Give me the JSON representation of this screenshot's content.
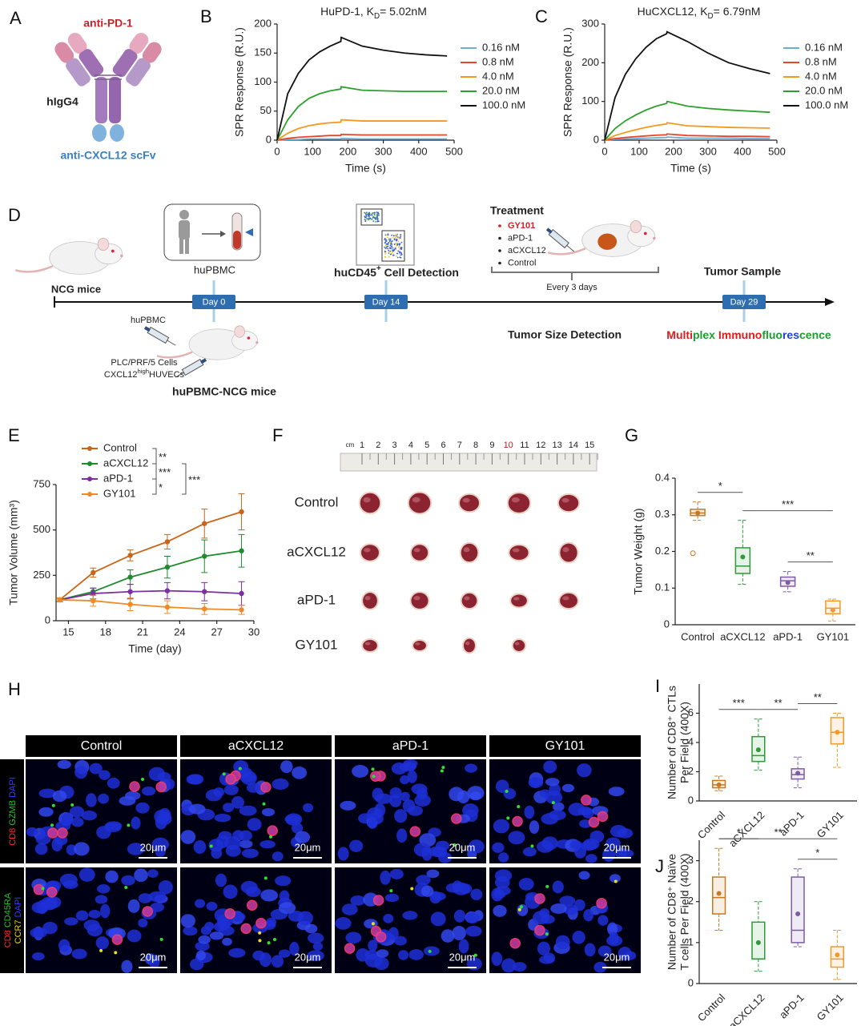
{
  "chart_data": [
    {
      "type": "line",
      "panel": "B",
      "title": {
        "text": "HuPD-1, K",
        "subscript": "D",
        "rest": "= 5.02nM"
      },
      "xlabel": "Time (s)",
      "ylabel": "SPR Response (R.U.)",
      "legend": "right",
      "xlim": [
        0,
        500
      ],
      "xticks": [
        0,
        100,
        200,
        300,
        400,
        500
      ],
      "ylim": [
        0,
        200
      ],
      "yticks": [
        0,
        50,
        100,
        150,
        200
      ],
      "x": [
        0,
        30,
        60,
        90,
        120,
        150,
        180,
        181,
        240,
        300,
        360,
        420,
        480
      ],
      "series": [
        {
          "name": "0.16 nM",
          "color": "#6baed6",
          "values": [
            0,
            1,
            1,
            2,
            2,
            2,
            2,
            3,
            2,
            2,
            2,
            2,
            2
          ]
        },
        {
          "name": "0.8 nM",
          "color": "#e8462a",
          "values": [
            0,
            3,
            5,
            6,
            7,
            8,
            8,
            10,
            9,
            9,
            9,
            9,
            9
          ]
        },
        {
          "name": "4.0 nM",
          "color": "#f39a1e",
          "values": [
            0,
            12,
            20,
            25,
            28,
            30,
            31,
            35,
            33,
            33,
            33,
            33,
            33
          ]
        },
        {
          "name": "20.0 nM",
          "color": "#2ca02c",
          "values": [
            0,
            35,
            58,
            72,
            80,
            85,
            88,
            92,
            86,
            85,
            84,
            84,
            84
          ]
        },
        {
          "name": "100.0 nM",
          "color": "#111111",
          "values": [
            0,
            80,
            115,
            138,
            152,
            162,
            170,
            177,
            162,
            155,
            150,
            147,
            145
          ]
        }
      ]
    },
    {
      "type": "line",
      "panel": "C",
      "title": {
        "text": "HuCXCL12, K",
        "subscript": "D",
        "rest": "= 6.79nM"
      },
      "xlabel": "Time (s)",
      "ylabel": "SPR Response (R.U.)",
      "legend": "right",
      "xlim": [
        0,
        500
      ],
      "xticks": [
        0,
        100,
        200,
        300,
        400,
        500
      ],
      "ylim": [
        0,
        300
      ],
      "yticks": [
        0,
        100,
        200,
        300
      ],
      "x": [
        0,
        30,
        60,
        90,
        120,
        150,
        180,
        181,
        240,
        300,
        360,
        420,
        480
      ],
      "series": [
        {
          "name": "0.16 nM",
          "color": "#6baed6",
          "values": [
            0,
            2,
            3,
            4,
            5,
            6,
            7,
            8,
            5,
            5,
            5,
            4,
            4
          ]
        },
        {
          "name": "0.8 nM",
          "color": "#e8462a",
          "values": [
            0,
            4,
            7,
            9,
            11,
            13,
            14,
            16,
            12,
            11,
            10,
            10,
            9
          ]
        },
        {
          "name": "4.0 nM",
          "color": "#f39a1e",
          "values": [
            0,
            12,
            20,
            27,
            33,
            38,
            42,
            45,
            37,
            35,
            33,
            32,
            31
          ]
        },
        {
          "name": "20.0 nM",
          "color": "#2ca02c",
          "values": [
            0,
            30,
            50,
            65,
            78,
            88,
            95,
            100,
            88,
            82,
            78,
            75,
            72
          ]
        },
        {
          "name": "100.0 nM",
          "color": "#111111",
          "values": [
            0,
            110,
            170,
            210,
            240,
            262,
            275,
            280,
            255,
            225,
            200,
            185,
            172
          ]
        }
      ]
    },
    {
      "type": "line",
      "panel": "E",
      "xlabel": "Time (day)",
      "ylabel": "Tumor Volume (mm³)",
      "legend": "top-left",
      "xlim": [
        14,
        30
      ],
      "xticks": [
        15,
        18,
        21,
        24,
        27,
        30
      ],
      "ylim": [
        0,
        750
      ],
      "yticks": [
        0,
        250,
        500,
        750
      ],
      "x": [
        14.3,
        17,
        20,
        23,
        26,
        29
      ],
      "series": [
        {
          "name": "Control",
          "color": "#c8651b",
          "values": [
            115,
            265,
            360,
            435,
            535,
            600
          ],
          "errors": [
            10,
            25,
            30,
            40,
            80,
            100
          ]
        },
        {
          "name": "aCXCL12",
          "color": "#1f8a2e",
          "values": [
            115,
            160,
            240,
            295,
            355,
            385
          ],
          "errors": [
            10,
            20,
            40,
            60,
            90,
            90
          ]
        },
        {
          "name": "aPD-1",
          "color": "#7b2fa0",
          "values": [
            115,
            150,
            160,
            165,
            160,
            150
          ],
          "errors": [
            10,
            30,
            40,
            45,
            50,
            65
          ]
        },
        {
          "name": "GY101",
          "color": "#f08a24",
          "values": [
            115,
            110,
            90,
            75,
            65,
            60
          ],
          "errors": [
            10,
            30,
            35,
            35,
            30,
            25
          ]
        }
      ],
      "significance": [
        {
          "between": [
            "Control",
            "aCXCL12"
          ],
          "label": "**"
        },
        {
          "between": [
            "aCXCL12",
            "aPD-1"
          ],
          "label": "***"
        },
        {
          "between": [
            "aPD-1",
            "GY101"
          ],
          "label": "*"
        },
        {
          "between": [
            "aCXCL12",
            "GY101"
          ],
          "label": "***"
        }
      ]
    },
    {
      "type": "box",
      "panel": "G",
      "ylabel": "Tumor Weight (g)",
      "categories": [
        "Control",
        "aCXCL12",
        "aPD-1",
        "GY101"
      ],
      "colors": [
        "#c8781e",
        "#2e9a3a",
        "#7d5ba6",
        "#f09a2c"
      ],
      "ylim": [
        0,
        0.4
      ],
      "yticks": [
        0,
        0.1,
        0.2,
        0.3,
        0.4
      ],
      "boxes": [
        {
          "low": 0.285,
          "q1": 0.298,
          "median": 0.305,
          "q3": 0.315,
          "high": 0.335,
          "mean": 0.305,
          "outliers": [
            0.195
          ]
        },
        {
          "low": 0.11,
          "q1": 0.14,
          "median": 0.16,
          "q3": 0.21,
          "high": 0.285,
          "mean": 0.185,
          "outliers": []
        },
        {
          "low": 0.09,
          "q1": 0.105,
          "median": 0.12,
          "q3": 0.13,
          "high": 0.145,
          "mean": 0.115,
          "outliers": []
        },
        {
          "low": 0.01,
          "q1": 0.03,
          "median": 0.045,
          "q3": 0.065,
          "high": 0.07,
          "mean": 0.04,
          "outliers": []
        }
      ],
      "significance": [
        {
          "between": [
            "Control",
            "aCXCL12"
          ],
          "label": "*"
        },
        {
          "between": [
            "aCXCL12",
            "GY101"
          ],
          "label": "***"
        },
        {
          "between": [
            "aPD-1",
            "GY101"
          ],
          "label": "**"
        }
      ]
    },
    {
      "type": "box",
      "panel": "I",
      "ylabel": [
        "Number of CD8⁺ CTLs",
        "Per Field (400X)"
      ],
      "categories": [
        "Control",
        "aCXCL12",
        "aPD-1",
        "GY101"
      ],
      "colors": [
        "#c8781e",
        "#2e9a3a",
        "#7d5ba6",
        "#f09a2c"
      ],
      "ylim": [
        0,
        8
      ],
      "yticks": [
        0,
        2,
        4,
        6
      ],
      "boxes": [
        {
          "low": 0.7,
          "q1": 0.9,
          "median": 1.1,
          "q3": 1.4,
          "high": 1.7,
          "mean": 1.1,
          "outliers": []
        },
        {
          "low": 2.1,
          "q1": 2.7,
          "median": 3.1,
          "q3": 4.4,
          "high": 5.6,
          "mean": 3.5,
          "outliers": []
        },
        {
          "low": 0.9,
          "q1": 1.5,
          "median": 1.8,
          "q3": 2.2,
          "high": 3.0,
          "mean": 1.9,
          "outliers": []
        },
        {
          "low": 2.3,
          "q1": 3.9,
          "median": 4.7,
          "q3": 5.7,
          "high": 6.0,
          "mean": 4.7,
          "outliers": []
        }
      ],
      "significance": [
        {
          "between": [
            "Control",
            "aCXCL12"
          ],
          "label": "***"
        },
        {
          "between": [
            "aCXCL12",
            "aPD-1"
          ],
          "label": "**"
        },
        {
          "between": [
            "aPD-1",
            "GY101"
          ],
          "label": "**"
        }
      ]
    },
    {
      "type": "box",
      "panel": "J",
      "ylabel": [
        "Number of CD8⁺ Naïve",
        "T cells Per Field (400X)"
      ],
      "categories": [
        "Control",
        "aCXCL12",
        "aPD-1",
        "GY101"
      ],
      "colors": [
        "#c8781e",
        "#2e9a3a",
        "#7d5ba6",
        "#f09a2c"
      ],
      "ylim": [
        0,
        3.5
      ],
      "yticks": [
        0,
        1,
        2,
        3
      ],
      "boxes": [
        {
          "low": 1.3,
          "q1": 1.7,
          "median": 2.1,
          "q3": 2.6,
          "high": 3.3,
          "mean": 2.2,
          "outliers": []
        },
        {
          "low": 0.3,
          "q1": 0.6,
          "median": 0.6,
          "q3": 1.5,
          "high": 2.0,
          "mean": 1.0,
          "outliers": []
        },
        {
          "low": 0.9,
          "q1": 1.0,
          "median": 1.3,
          "q3": 2.6,
          "high": 2.8,
          "mean": 1.7,
          "outliers": []
        },
        {
          "low": 0.1,
          "q1": 0.4,
          "median": 0.6,
          "q3": 0.9,
          "high": 1.3,
          "mean": 0.7,
          "outliers": []
        }
      ],
      "significance": [
        {
          "between": [
            "Control",
            "aCXCL12"
          ],
          "label": "*"
        },
        {
          "between": [
            "Control",
            "GY101"
          ],
          "label": "**"
        },
        {
          "between": [
            "aPD-1",
            "GY101"
          ],
          "label": "*"
        }
      ]
    }
  ],
  "panels": {
    "A": {
      "label": "A",
      "top_label": "anti-PD-1",
      "middle_label": "hIgG4",
      "bottom_label": "anti-CXCL12 scFv"
    },
    "D": {
      "label": "D",
      "ncg": "NCG mice",
      "hupbmc_top": "huPBMC",
      "day0": "Day 0",
      "hupbmc_inject": "huPBMC",
      "cells_line1": "PLC/PRF/5 Cells",
      "cells_line2": {
        "text": "CXCL12",
        "superscript": "high",
        "rest": "HUVECs"
      },
      "model": "huPBMC-NCG mice",
      "detection": {
        "text": "huCD45",
        "superscript": "+",
        "rest": " Cell Detection"
      },
      "day14": "Day 14",
      "treatment_title": "Treatment",
      "treatments": [
        "GY101",
        "aPD-1",
        "aCXCL12",
        "Control"
      ],
      "interval": "Every 3 days",
      "sample": "Tumor Sample",
      "day29": "Day 29",
      "size_detection": "Tumor Size Detection",
      "multiplex": [
        {
          "text": "Multi",
          "color": "#e41a1c"
        },
        {
          "text": "plex ",
          "color": "#1a9e2e"
        },
        {
          "text": "Immuno",
          "color": "#e41a1c"
        },
        {
          "text": "fluo",
          "color": "#1a9e2e"
        },
        {
          "text": "res",
          "color": "#1f3fd8"
        },
        {
          "text": "cence",
          "color": "#1a9e2e"
        }
      ]
    },
    "F": {
      "label": "F",
      "ruler_unit": "cm",
      "ruler_marks": [
        1,
        2,
        3,
        4,
        5,
        6,
        7,
        8,
        9,
        10,
        11,
        12,
        13,
        14,
        15
      ],
      "groups": [
        "Control",
        "aCXCL12",
        "aPD-1",
        "GY101"
      ],
      "tumors_per_row": [
        5,
        5,
        5,
        4
      ]
    },
    "H": {
      "label": "H",
      "columns": [
        "Control",
        "aCXCL12",
        "aPD-1",
        "GY101"
      ],
      "rows": [
        [
          [
            {
              "text": "CD8",
              "color": "#ff2a2a"
            },
            {
              "text": " GZMB",
              "color": "#27c027"
            },
            {
              "text": " DAPI",
              "color": "#3a3aff"
            }
          ]
        ],
        [
          [
            {
              "text": "CD8",
              "color": "#ff2a2a"
            },
            {
              "text": " CD45RA",
              "color": "#27c027"
            }
          ],
          [
            {
              "text": "CCR7",
              "color": "#e8d800"
            },
            {
              "text": " DAPI",
              "color": "#3a3aff"
            }
          ]
        ]
      ],
      "scale_bar": "20μm"
    }
  }
}
